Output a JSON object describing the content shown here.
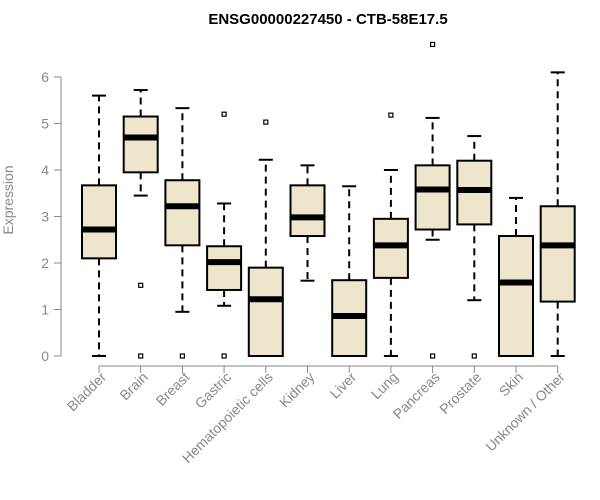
{
  "chart_data": {
    "type": "boxplot",
    "title": "ENSG00000227450 - CTB-58E17.5",
    "xlabel": "",
    "ylabel": "Expression",
    "ylim": [
      0,
      6.3
    ],
    "yticks": [
      0,
      1,
      2,
      3,
      4,
      5,
      6
    ],
    "box_fill": "#ede6cc",
    "categories": [
      "Bladder",
      "Brain",
      "Breast",
      "Gastric",
      "Hematopoietic cells",
      "Kidney",
      "Liver",
      "Lung",
      "Pancreas",
      "Prostate",
      "Skin",
      "Unknown / Other"
    ],
    "boxes": [
      {
        "whisker_low": 0.0,
        "q1": 2.1,
        "median": 2.72,
        "q3": 3.67,
        "whisker_high": 5.6,
        "outliers": []
      },
      {
        "whisker_low": 3.45,
        "q1": 3.95,
        "median": 4.7,
        "q3": 5.15,
        "whisker_high": 5.72,
        "outliers": [
          1.52,
          0.0
        ]
      },
      {
        "whisker_low": 0.95,
        "q1": 2.38,
        "median": 3.22,
        "q3": 3.78,
        "whisker_high": 5.33,
        "outliers": [
          0.0
        ]
      },
      {
        "whisker_low": 1.08,
        "q1": 1.42,
        "median": 2.02,
        "q3": 2.36,
        "whisker_high": 3.28,
        "outliers": [
          5.2,
          0.0
        ]
      },
      {
        "whisker_low": 0.0,
        "q1": 0.0,
        "median": 1.22,
        "q3": 1.9,
        "whisker_high": 4.22,
        "outliers": [
          5.03
        ]
      },
      {
        "whisker_low": 1.62,
        "q1": 2.58,
        "median": 2.98,
        "q3": 3.67,
        "whisker_high": 4.1,
        "outliers": []
      },
      {
        "whisker_low": 0.0,
        "q1": 0.0,
        "median": 0.86,
        "q3": 1.63,
        "whisker_high": 3.65,
        "outliers": []
      },
      {
        "whisker_low": 0.0,
        "q1": 1.68,
        "median": 2.38,
        "q3": 2.95,
        "whisker_high": 4.0,
        "outliers": [
          5.18
        ]
      },
      {
        "whisker_low": 2.5,
        "q1": 2.72,
        "median": 3.58,
        "q3": 4.1,
        "whisker_high": 5.12,
        "outliers": [
          6.7,
          0.0
        ]
      },
      {
        "whisker_low": 1.2,
        "q1": 2.83,
        "median": 3.57,
        "q3": 4.2,
        "whisker_high": 4.73,
        "outliers": [
          0.0
        ]
      },
      {
        "whisker_low": 0.0,
        "q1": 0.0,
        "median": 1.58,
        "q3": 2.58,
        "whisker_high": 3.4,
        "outliers": []
      },
      {
        "whisker_low": 0.0,
        "q1": 1.17,
        "median": 2.38,
        "q3": 3.22,
        "whisker_high": 6.1,
        "outliers": []
      }
    ]
  }
}
